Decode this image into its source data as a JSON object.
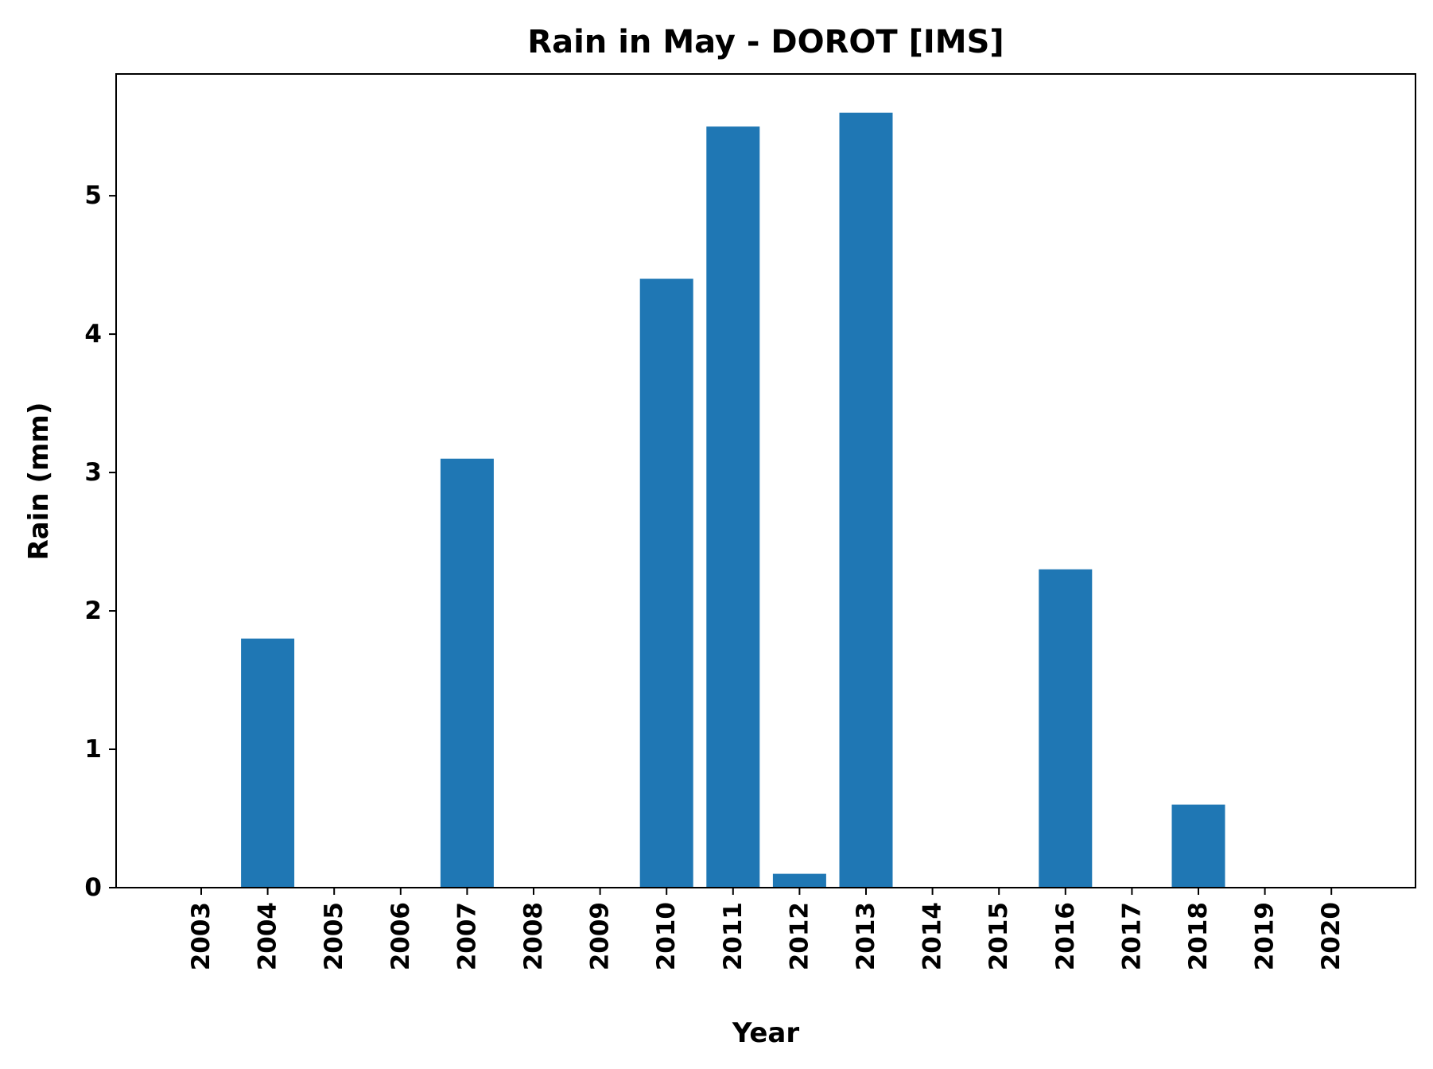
{
  "chart_data": {
    "type": "bar",
    "title": "Rain in May - DOROT [IMS]",
    "xlabel": "Year",
    "ylabel": "Rain (mm)",
    "categories": [
      "2003",
      "2004",
      "2005",
      "2006",
      "2007",
      "2008",
      "2009",
      "2010",
      "2011",
      "2012",
      "2013",
      "2014",
      "2015",
      "2016",
      "2017",
      "2018",
      "2019",
      "2020"
    ],
    "values": [
      0,
      1.8,
      0,
      0,
      3.1,
      0,
      0,
      4.4,
      5.5,
      0.1,
      5.6,
      0,
      0,
      2.3,
      0,
      0.6,
      0,
      0
    ],
    "ylim": [
      0,
      5.88
    ],
    "yticks": [
      0,
      1,
      2,
      3,
      4,
      5
    ],
    "bar_color": "#1f77b4",
    "grid": false,
    "legend": "none"
  }
}
